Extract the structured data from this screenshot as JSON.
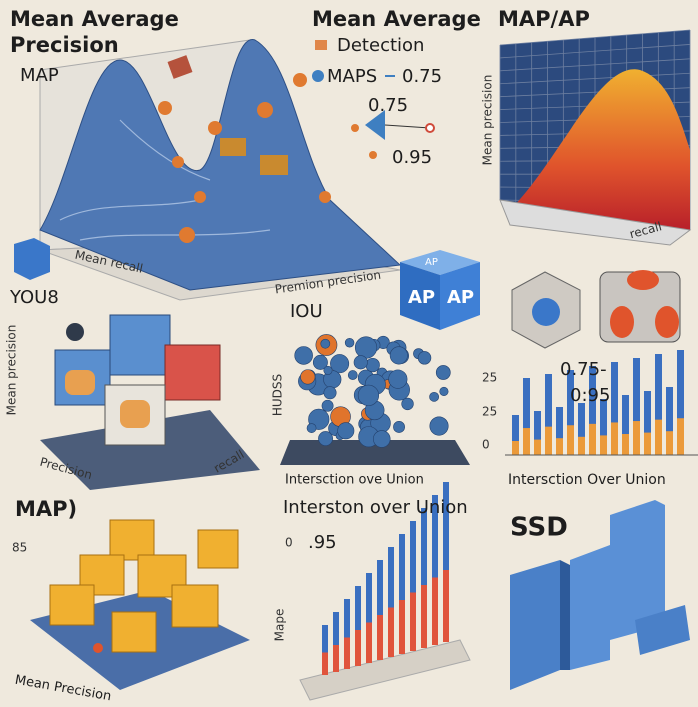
{
  "panels": {
    "surface": {
      "title_line1": "Mean Average",
      "title_line2": "Precision",
      "label": "MAP",
      "x_label": "Mean recall",
      "y_label": "Premion precision"
    },
    "detection": {
      "title_line1": "Mean Average",
      "title_line2": "Detection",
      "legend": "MAPS",
      "legend_value": "0.75",
      "gauge_top": "0.75",
      "gauge_bottom": "0.95"
    },
    "map_ap": {
      "title": "MAP/AP",
      "z_label": "Mean precision",
      "x_label": "recall"
    },
    "yolo": {
      "title": "YOU8",
      "y_label": "Mean precision",
      "x_label": "Precision",
      "z_label": "recall"
    },
    "ap_cube": {
      "front": "AP",
      "side": "AP",
      "corner": "AP"
    },
    "iou": {
      "title": "IOU",
      "y_label": "HUDSS",
      "x_label": "Intersction ove Union"
    },
    "bars": {
      "tick_top": "25",
      "tick_mid": "25",
      "tick_zero": "0",
      "range_top": "0.75-",
      "range_bottom": "0:95",
      "x_label": "Intersction Over Union"
    },
    "cubes": {
      "title": "MAP)",
      "tick": "85",
      "x_label": "Mean Precision"
    },
    "iou_bars": {
      "title": "Interston over Union",
      "value": ".95",
      "tick": "0",
      "y_label": "Mape"
    },
    "ssd": {
      "title": "SSD"
    }
  }
}
